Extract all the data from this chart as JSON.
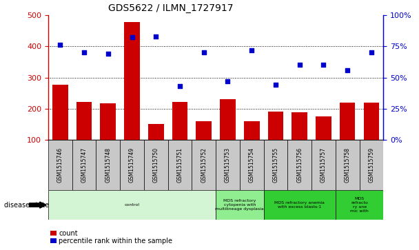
{
  "title": "GDS5622 / ILMN_1727917",
  "samples": [
    "GSM1515746",
    "GSM1515747",
    "GSM1515748",
    "GSM1515749",
    "GSM1515750",
    "GSM1515751",
    "GSM1515752",
    "GSM1515753",
    "GSM1515754",
    "GSM1515755",
    "GSM1515756",
    "GSM1515757",
    "GSM1515758",
    "GSM1515759"
  ],
  "counts": [
    278,
    222,
    218,
    478,
    152,
    222,
    160,
    230,
    160,
    192,
    188,
    175,
    220,
    220
  ],
  "percentile_ranks": [
    76,
    70,
    69,
    82,
    83,
    43,
    70,
    47,
    72,
    44,
    60,
    60,
    56,
    70
  ],
  "bar_color": "#cc0000",
  "dot_color": "#0000cc",
  "disease_groups": [
    {
      "label": "control",
      "start": 0,
      "end": 7,
      "color": "#d4f5d4"
    },
    {
      "label": "MDS refractory\ncytopenia with\nmultilineage dysplasia",
      "start": 7,
      "end": 9,
      "color": "#90ee90"
    },
    {
      "label": "MDS refractory anemia\nwith excess blasts-1",
      "start": 9,
      "end": 12,
      "color": "#32cd32"
    },
    {
      "label": "MDS\nrefracto\nry ane\nmic with",
      "start": 12,
      "end": 14,
      "color": "#32cd32"
    }
  ],
  "ylim_left": [
    100,
    500
  ],
  "ylim_right": [
    0,
    100
  ],
  "yticks_left": [
    100,
    200,
    300,
    400,
    500
  ],
  "yticks_right": [
    0,
    25,
    50,
    75,
    100
  ],
  "ylabel_left_color": "#cc0000",
  "ylabel_right_color": "#0000cc",
  "tick_label_area_color": "#c8c8c8",
  "grid_dotted_at": [
    200,
    300,
    400
  ]
}
